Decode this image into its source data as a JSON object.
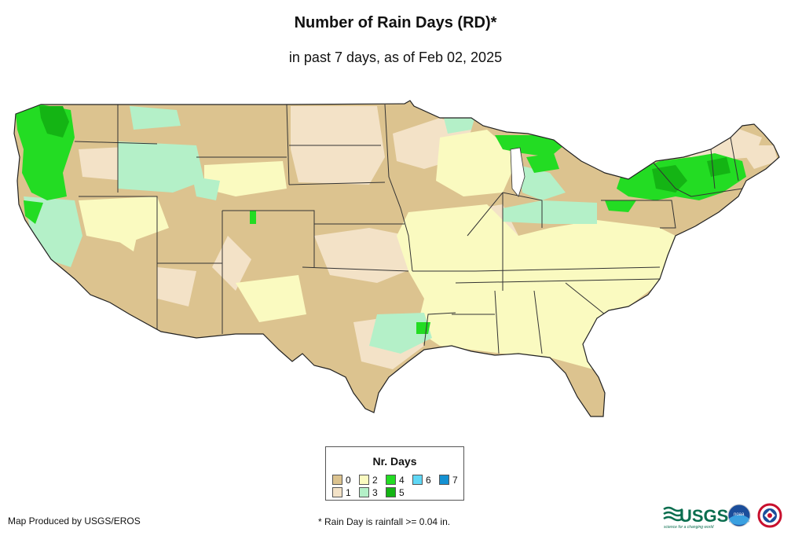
{
  "title": "Number of Rain Days (RD)*",
  "subtitle": "in past 7 days, as of Feb 02, 2025",
  "legend": {
    "title": "Nr. Days",
    "items": [
      {
        "label": "0",
        "color": "#dcc38f"
      },
      {
        "label": "1",
        "color": "#f3e2c7"
      },
      {
        "label": "2",
        "color": "#fafac0"
      },
      {
        "label": "3",
        "color": "#b4f0c8"
      },
      {
        "label": "4",
        "color": "#23dc23"
      },
      {
        "label": "5",
        "color": "#14b414"
      },
      {
        "label": "6",
        "color": "#5fd7f5"
      },
      {
        "label": "7",
        "color": "#1491d2"
      }
    ]
  },
  "credit": "Map Produced by USGS/EROS",
  "footnote": "* Rain Day is rainfall >= 0.04 in.",
  "logos": {
    "usgs_text": "USGS",
    "usgs_tagline": "science for a changing world",
    "noaa_text": "noaa"
  }
}
